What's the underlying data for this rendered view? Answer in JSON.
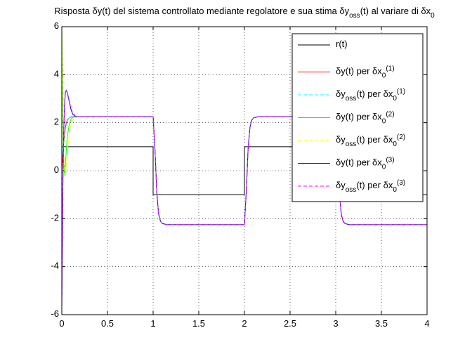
{
  "chart_data": {
    "type": "line",
    "title": "Risposta δy(t) del sistema controllato mediante regolatore e sua stima δy_{oss}(t) al variare di δx_0",
    "xlim": [
      0,
      4
    ],
    "xticks": [
      0,
      0.5,
      1,
      1.5,
      2,
      2.5,
      3,
      3.5,
      4
    ],
    "ylim": [
      -6,
      6
    ],
    "yticks": [
      -6,
      -4,
      -2,
      0,
      2,
      4,
      6
    ],
    "grid": true,
    "legend": "upper right",
    "series": [
      {
        "name": "r(t)",
        "color": "#000000",
        "dash": false,
        "x": [
          0,
          1,
          1,
          2,
          2,
          3,
          3,
          4
        ],
        "values": [
          1,
          1,
          -1,
          -1,
          1,
          1,
          -1,
          -1
        ]
      },
      {
        "name": "δy(t) per δx_0^{(1)}",
        "color": "#ff0000",
        "dash": false,
        "x": [
          0,
          0.01,
          0.02,
          0.03,
          0.04,
          0.05,
          0.06,
          0.08,
          0.1,
          0.12,
          0.15,
          0.2,
          0.3,
          1,
          1.02,
          1.04,
          1.06,
          1.08,
          1.1,
          1.15,
          1.2,
          2,
          2.02,
          2.04,
          2.06,
          2.08,
          2.1,
          2.15,
          2.2,
          3,
          3.02,
          3.04,
          3.06,
          3.08,
          3.1,
          3.15,
          3.2,
          4
        ],
        "values": [
          0,
          0.6,
          1.1,
          1.5,
          1.8,
          2.0,
          2.1,
          2.2,
          2.24,
          2.25,
          2.25,
          2.25,
          2.25,
          2.25,
          0.9,
          -0.9,
          -1.8,
          -2.1,
          -2.2,
          -2.25,
          -2.25,
          -2.25,
          -0.9,
          0.9,
          1.8,
          2.1,
          2.2,
          2.25,
          2.25,
          2.25,
          0.9,
          -0.9,
          -1.8,
          -2.1,
          -2.2,
          -2.25,
          -2.25,
          -2.25
        ]
      },
      {
        "name": "δy_{oss}(t) per δx_0^{(1)}",
        "color": "#00ffff",
        "dash": true,
        "x": [
          0,
          0.01,
          0.02,
          0.03,
          0.04,
          0.05,
          0.06,
          0.08,
          0.1,
          0.12,
          0.15,
          0.2,
          0.3,
          1,
          1.02,
          1.04,
          1.06,
          1.08,
          1.1,
          1.15,
          1.2,
          2,
          2.02,
          2.04,
          2.06,
          2.08,
          2.1,
          2.15,
          2.2,
          3,
          3.02,
          3.04,
          3.06,
          3.08,
          3.1,
          3.15,
          3.2,
          4
        ],
        "values": [
          0.5,
          0.8,
          1.1,
          1.4,
          1.7,
          1.9,
          2.05,
          2.2,
          2.24,
          2.25,
          2.25,
          2.25,
          2.25,
          2.25,
          0.9,
          -0.9,
          -1.8,
          -2.1,
          -2.2,
          -2.25,
          -2.25,
          -2.25,
          -0.9,
          0.9,
          1.8,
          2.1,
          2.2,
          2.25,
          2.25,
          2.25,
          0.9,
          -0.9,
          -1.8,
          -2.1,
          -2.2,
          -2.25,
          -2.25,
          -2.25
        ]
      },
      {
        "name": "δy(t) per δx_0^{(2)}",
        "color": "#00ff00",
        "dash": false,
        "x": [
          0,
          0.01,
          0.02,
          0.03,
          0.04,
          0.05,
          0.06,
          0.08,
          0.1,
          0.12,
          0.15,
          0.2,
          0.3,
          1,
          1.02,
          1.04,
          1.06,
          1.08,
          1.1,
          1.15,
          1.2,
          2,
          2.02,
          2.04,
          2.06,
          2.08,
          2.1,
          2.15,
          2.2,
          3,
          3.02,
          3.04,
          3.06,
          3.08,
          3.1,
          3.15,
          3.2,
          4
        ],
        "values": [
          6,
          2.5,
          0.5,
          -0.2,
          0.3,
          0.9,
          1.4,
          1.9,
          2.15,
          2.22,
          2.25,
          2.25,
          2.25,
          2.25,
          0.9,
          -0.9,
          -1.8,
          -2.1,
          -2.2,
          -2.25,
          -2.25,
          -2.25,
          -0.9,
          0.9,
          1.8,
          2.1,
          2.2,
          2.25,
          2.25,
          2.25,
          0.9,
          -0.9,
          -1.8,
          -2.1,
          -2.2,
          -2.25,
          -2.25,
          -2.25
        ]
      },
      {
        "name": "δy_{oss}(t) per δx_0^{(2)}",
        "color": "#ffff00",
        "dash": true,
        "x": [
          0,
          0.01,
          0.02,
          0.03,
          0.04,
          0.05,
          0.06,
          0.08,
          0.1,
          0.12,
          0.15,
          0.2,
          0.3,
          1,
          1.02,
          1.04,
          1.06,
          1.08,
          1.1,
          1.15,
          1.2,
          2,
          2.02,
          2.04,
          2.06,
          2.08,
          2.1,
          2.15,
          2.2,
          3,
          3.02,
          3.04,
          3.06,
          3.08,
          3.1,
          3.15,
          3.2,
          4
        ],
        "values": [
          6,
          3,
          0.8,
          -0.1,
          -0.3,
          0.3,
          0.8,
          1.5,
          1.9,
          2.1,
          2.22,
          2.25,
          2.25,
          2.25,
          0.9,
          -0.9,
          -1.8,
          -2.1,
          -2.2,
          -2.25,
          -2.25,
          -2.25,
          -0.9,
          0.9,
          1.8,
          2.1,
          2.2,
          2.25,
          2.25,
          2.25,
          0.9,
          -0.9,
          -1.8,
          -2.1,
          -2.2,
          -2.25,
          -2.25,
          -2.25
        ]
      },
      {
        "name": "δy(t) per δx_0^{(3)}",
        "color": "#0000ff",
        "dash": false,
        "x": [
          0,
          0.01,
          0.02,
          0.03,
          0.04,
          0.05,
          0.06,
          0.08,
          0.1,
          0.12,
          0.15,
          0.2,
          0.3,
          1,
          1.02,
          1.04,
          1.06,
          1.08,
          1.1,
          1.15,
          1.2,
          2,
          2.02,
          2.04,
          2.06,
          2.08,
          2.1,
          2.15,
          2.2,
          3,
          3.02,
          3.04,
          3.06,
          3.08,
          3.1,
          3.15,
          3.2,
          4
        ],
        "values": [
          -5.7,
          -1,
          1.5,
          2.8,
          3.3,
          3.35,
          3.25,
          2.9,
          2.55,
          2.35,
          2.25,
          2.25,
          2.25,
          2.25,
          0.9,
          -0.9,
          -1.8,
          -2.1,
          -2.2,
          -2.25,
          -2.25,
          -2.25,
          -0.9,
          0.9,
          1.8,
          2.1,
          2.2,
          2.25,
          2.25,
          2.25,
          0.9,
          -0.9,
          -1.8,
          -2.1,
          -2.2,
          -2.25,
          -2.25,
          -2.25
        ]
      },
      {
        "name": "δy_{oss}(t) per δx_0^{(3)}",
        "color": "#ff00ff",
        "dash": true,
        "x": [
          0,
          0.01,
          0.02,
          0.03,
          0.04,
          0.05,
          0.06,
          0.08,
          0.1,
          0.12,
          0.15,
          0.2,
          0.3,
          1,
          1.02,
          1.04,
          1.06,
          1.08,
          1.1,
          1.15,
          1.2,
          2,
          2.02,
          2.04,
          2.06,
          2.08,
          2.1,
          2.15,
          2.2,
          3,
          3.02,
          3.04,
          3.06,
          3.08,
          3.1,
          3.15,
          3.2,
          4
        ],
        "values": [
          -5.9,
          -1.2,
          1.4,
          2.7,
          3.25,
          3.35,
          3.28,
          2.95,
          2.6,
          2.4,
          2.27,
          2.25,
          2.25,
          2.25,
          0.9,
          -0.9,
          -1.8,
          -2.1,
          -2.2,
          -2.25,
          -2.25,
          -2.25,
          -0.9,
          0.9,
          1.8,
          2.1,
          2.2,
          2.25,
          2.25,
          2.25,
          0.9,
          -0.9,
          -1.8,
          -2.1,
          -2.2,
          -2.25,
          -2.25,
          -2.25
        ]
      }
    ]
  }
}
